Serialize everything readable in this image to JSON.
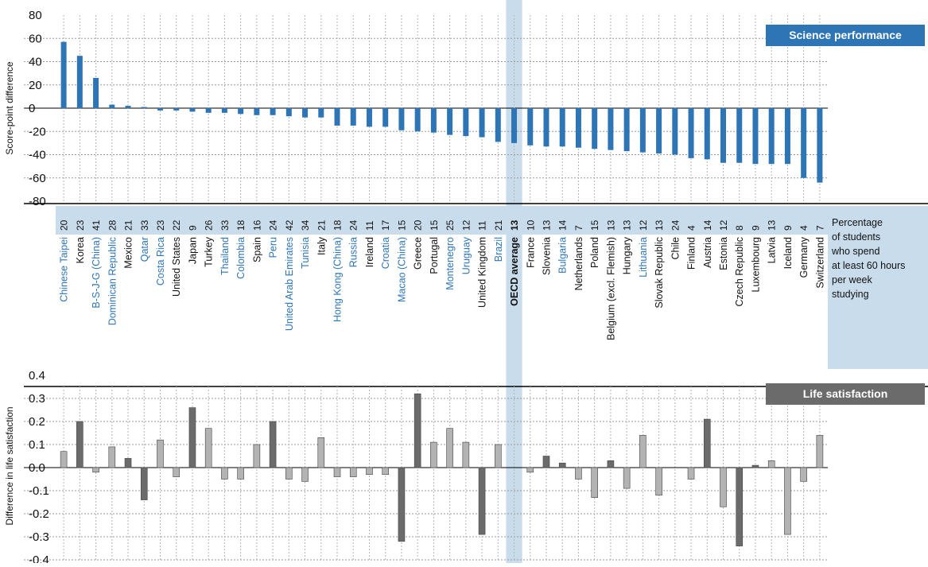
{
  "chart_data": [
    {
      "type": "bar",
      "panel_title": "Science performance",
      "ylabel": "Score-point difference",
      "ylim": [
        -80,
        80
      ],
      "yticks": [
        "80",
        "60",
        "40",
        "20",
        "0",
        "-20",
        "-40",
        "-60",
        "-80"
      ],
      "grid": true,
      "countries": [
        "Chinese Taipei",
        "Korea",
        "B-S-J-G (China)",
        "Dominican Republic",
        "Mexico",
        "Qatar",
        "Costa Rica",
        "United States",
        "Japan",
        "Turkey",
        "Thailand",
        "Colombia",
        "Spain",
        "Peru",
        "United Arab Emirates",
        "Tunisia",
        "Italy",
        "Hong Kong (China)",
        "Russia",
        "Ireland",
        "Croatia",
        "Macao (China)",
        "Greece",
        "Portugal",
        "Montenegro",
        "Uruguay",
        "United Kingdom",
        "Brazil",
        "OECD average",
        "France",
        "Slovenia",
        "Bulgaria",
        "Netherlands",
        "Poland",
        "Belgium (excl. Flemish)",
        "Hungary",
        "Lithuania",
        "Slovak Republic",
        "Chile",
        "Finland",
        "Austria",
        "Estonia",
        "Czech Republic",
        "Luxembourg",
        "Latvia",
        "Iceland",
        "Germany",
        "Switzerland"
      ],
      "highlighted_countries": [
        "Chinese Taipei",
        "B-S-J-G (China)",
        "Dominican Republic",
        "Qatar",
        "Costa Rica",
        "Thailand",
        "Colombia",
        "Peru",
        "United Arab Emirates",
        "Tunisia",
        "Hong Kong (China)",
        "Russia",
        "Croatia",
        "Macao (China)",
        "Montenegro",
        "Uruguay",
        "Brazil",
        "Bulgaria",
        "Lithuania"
      ],
      "values": [
        57,
        45,
        26,
        3,
        2,
        1,
        -2,
        -2,
        -3,
        -4,
        -4,
        -5,
        -6,
        -6,
        -7,
        -8,
        -8,
        -15,
        -15,
        -16,
        -16,
        -19,
        -20,
        -21,
        -23,
        -24,
        -25,
        -29,
        -30,
        -32,
        -33,
        -33,
        -34,
        -35,
        -36,
        -37,
        -38,
        -39,
        -40,
        -43,
        -44,
        -47,
        -47,
        -48,
        -48,
        -48,
        -60,
        -64
      ],
      "bar_color": "#2e75b6"
    },
    {
      "label_lines": [
        "Percentage",
        "of students",
        "who spend",
        "at least 60 hours",
        "per week",
        "studying"
      ],
      "values": [
        "20",
        "23",
        "41",
        "28",
        "21",
        "33",
        "23",
        "22",
        "9",
        "26",
        "33",
        "18",
        "16",
        "24",
        "42",
        "34",
        "21",
        "18",
        "24",
        "11",
        "17",
        "15",
        "20",
        "15",
        "25",
        "12",
        "11",
        "21",
        "13",
        "10",
        "13",
        "14",
        "7",
        "15",
        "13",
        "13",
        "12",
        "13",
        "24",
        "4",
        "14",
        "12",
        "8",
        "9",
        "13",
        "9",
        "4",
        "7"
      ]
    },
    {
      "type": "bar",
      "panel_title": "Life satisfaction",
      "ylabel": "Difference in life satisfaction",
      "ylim": [
        -0.4,
        0.4
      ],
      "yticks": [
        "0.4",
        "0.3",
        "0.2",
        "0.1",
        "0.0",
        "-0.1",
        "-0.2",
        "-0.3",
        "-0.4"
      ],
      "grid": true,
      "values": [
        0.07,
        0.2,
        -0.02,
        0.09,
        0.04,
        -0.14,
        0.12,
        -0.04,
        0.26,
        0.17,
        -0.05,
        -0.05,
        0.1,
        0.2,
        -0.05,
        -0.06,
        0.13,
        -0.04,
        -0.04,
        -0.03,
        -0.03,
        -0.32,
        0.32,
        0.11,
        0.17,
        0.11,
        -0.29,
        0.1,
        0.0,
        -0.02,
        0.05,
        0.02,
        -0.05,
        -0.13,
        0.03,
        -0.09,
        0.14,
        -0.12,
        0.0,
        -0.05,
        0.21,
        -0.17,
        -0.34,
        0.01,
        0.03,
        -0.29,
        -0.06,
        0.14
      ],
      "significant": [
        false,
        true,
        false,
        false,
        true,
        true,
        false,
        false,
        true,
        false,
        false,
        false,
        false,
        true,
        false,
        false,
        false,
        false,
        false,
        false,
        false,
        true,
        true,
        false,
        false,
        false,
        true,
        false,
        false,
        false,
        true,
        true,
        false,
        false,
        true,
        false,
        false,
        false,
        false,
        false,
        true,
        false,
        true,
        true,
        false,
        false,
        false,
        false
      ],
      "colors": {
        "significant": "#6b6b6b",
        "not_significant": "#b3b3b3"
      }
    }
  ],
  "colors": {
    "highlight_band": "#c9dcec",
    "oecd_column": "#c9dcec",
    "dark_panel_header": "#6b6b6b",
    "blue_text": "#2e75b6"
  }
}
